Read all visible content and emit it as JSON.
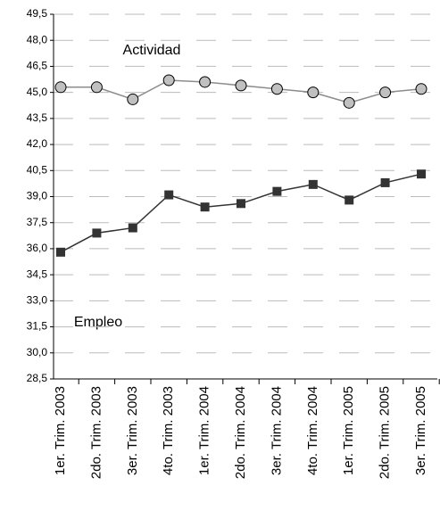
{
  "chart_data": {
    "type": "line",
    "categories": [
      "1er. Trim. 2003",
      "2do. Trim. 2003",
      "3er. Trim. 2003",
      "4to. Trim. 2003",
      "1er. Trim. 2004",
      "2do. Trim. 2004",
      "3er. Trim. 2004",
      "4to. Trim. 2004",
      "1er. Trim. 2005",
      "2do. Trim. 2005",
      "3er. Trim. 2005"
    ],
    "series": [
      {
        "name": "Actividad",
        "color": "#8c8c8c",
        "marker": "circle",
        "values": [
          45.3,
          45.3,
          44.6,
          45.7,
          45.6,
          45.4,
          45.2,
          45.0,
          44.4,
          45.0,
          45.2
        ]
      },
      {
        "name": "Empleo",
        "color": "#333333",
        "marker": "square",
        "values": [
          35.8,
          36.9,
          37.2,
          39.1,
          38.4,
          38.6,
          39.3,
          39.7,
          38.8,
          39.8,
          40.3
        ]
      }
    ],
    "ylim": [
      28.5,
      49.5
    ],
    "yticks": [
      {
        "value": 28.5,
        "label": "28,5"
      },
      {
        "value": 30,
        "label": "30,0"
      },
      {
        "value": 31.5,
        "label": "31,5"
      },
      {
        "value": 33,
        "label": "33,0"
      },
      {
        "value": 34.5,
        "label": "34,5"
      },
      {
        "value": 36,
        "label": "36,0"
      },
      {
        "value": 37.5,
        "label": "37,5"
      },
      {
        "value": 39,
        "label": "39,0"
      },
      {
        "value": 40.5,
        "label": "40,5"
      },
      {
        "value": 42,
        "label": "42,0"
      },
      {
        "value": 43.5,
        "label": "43,5"
      },
      {
        "value": 45,
        "label": "45,0"
      },
      {
        "value": 46.5,
        "label": "46,5"
      },
      {
        "value": 48,
        "label": "48,0"
      },
      {
        "value": 49.5,
        "label": "49,5"
      }
    ],
    "grid": true
  }
}
